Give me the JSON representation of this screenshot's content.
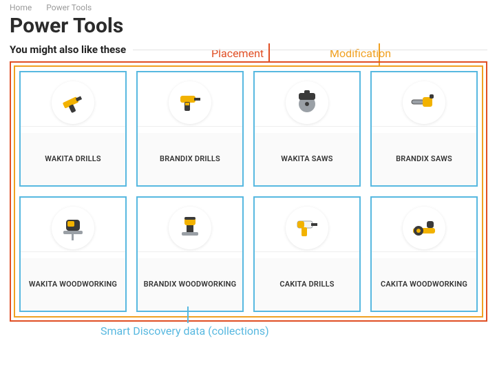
{
  "breadcrumb": {
    "home": "Home",
    "current": "Power Tools"
  },
  "page_title": "Power Tools",
  "section_title": "You might also like these",
  "annotations": {
    "placement": {
      "label": "Placement",
      "color": "#e04e23"
    },
    "modification": {
      "label": "Modification",
      "color": "#f0a020"
    },
    "smart_discovery": {
      "label": "Smart Discovery data (collections)",
      "color": "#57b8e0"
    }
  },
  "colors": {
    "card_border": "#57b8e0",
    "divider": "#e3e3e3",
    "text": "#2b2b2b",
    "muted": "#9a9a9a"
  },
  "cards": [
    {
      "label": "WAKITA DRILLS",
      "icon": "drill-angle"
    },
    {
      "label": "BRANDIX DRILLS",
      "icon": "drill-yellow"
    },
    {
      "label": "WAKITA SAWS",
      "icon": "circular-saw"
    },
    {
      "label": "BRANDIX SAWS",
      "icon": "chainsaw"
    },
    {
      "label": "WAKITA WOODWORKING",
      "icon": "jigsaw"
    },
    {
      "label": "BRANDIX WOODWORKING",
      "icon": "router"
    },
    {
      "label": "CAKITA DRILLS",
      "icon": "drill-alt"
    },
    {
      "label": "CAKITA WOODWORKING",
      "icon": "planer"
    }
  ]
}
